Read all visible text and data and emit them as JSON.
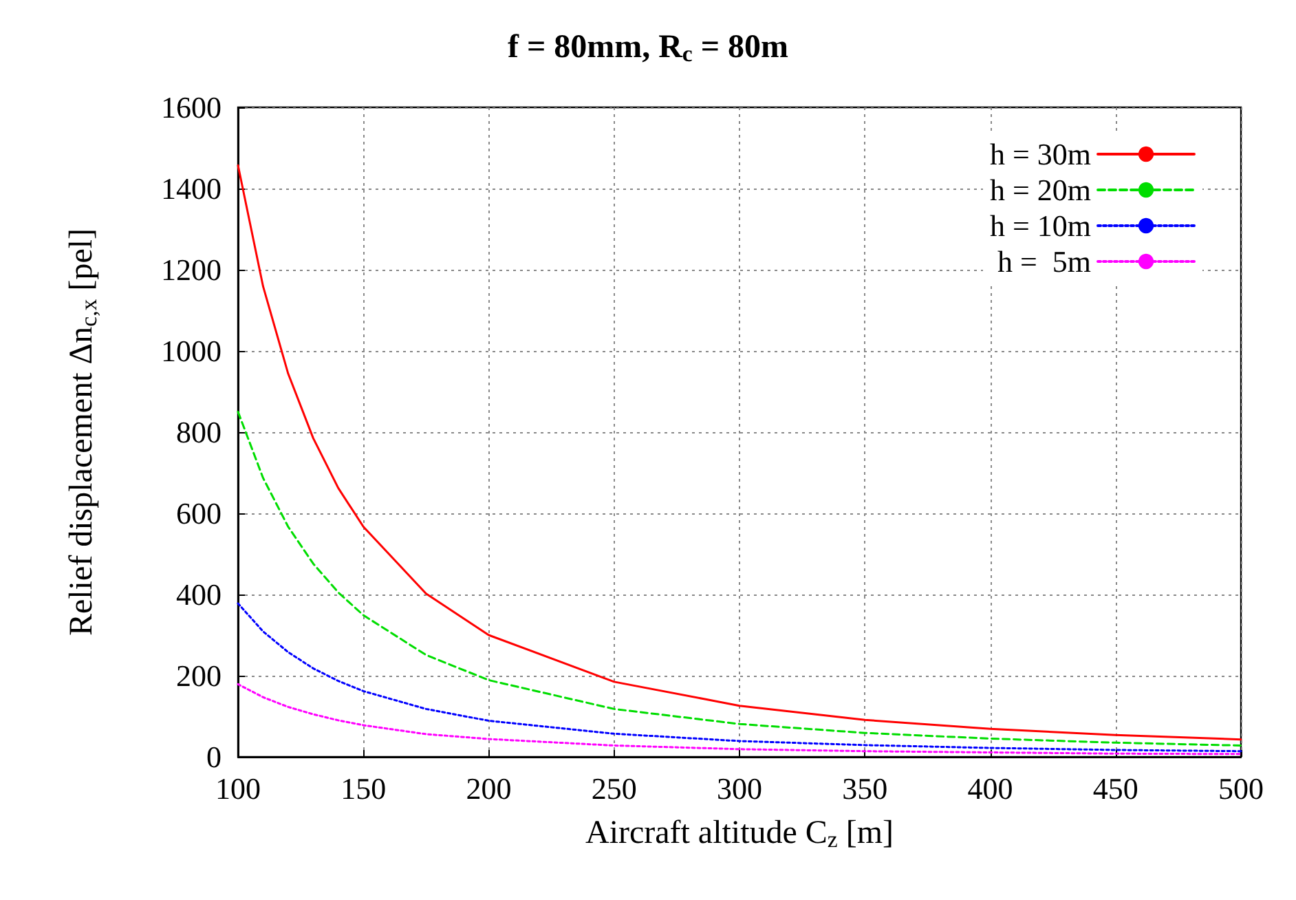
{
  "chart_data": {
    "type": "line",
    "title": "f = 80mm, R$_{c}$ = 80m",
    "xlabel": "Aircraft altitude C$_{z}$ [m]",
    "ylabel": "Relief displacement Δn$_{c,x}$ [pel]",
    "x": [
      100,
      110,
      120,
      130,
      140,
      150,
      175,
      200,
      250,
      300,
      350,
      400,
      450,
      500
    ],
    "series": [
      {
        "name": "h = 30m",
        "color": "#ff0000",
        "line_style": "solid",
        "values": [
          1457,
          1159,
          944,
          785,
          662,
          567,
          402,
          300,
          185,
          126,
          91,
          69,
          54,
          43
        ]
      },
      {
        "name": "h = 20m",
        "color": "#00dd00",
        "line_style": "dashed",
        "values": [
          850,
          687,
          567,
          476,
          405,
          349,
          251,
          189,
          118,
          81,
          59,
          45,
          35,
          28
        ]
      },
      {
        "name": "h = 10m",
        "color": "#0000ff",
        "line_style": "dotted",
        "values": [
          378,
          309,
          258,
          218,
          187,
          162,
          118,
          89,
          57,
          39,
          29,
          22,
          17,
          14
        ]
      },
      {
        "name": "h =  5m",
        "color": "#ff00ff",
        "line_style": "dotted",
        "values": [
          179,
          147,
          123,
          105,
          90,
          78,
          56,
          44,
          28,
          19,
          14,
          11,
          8,
          7
        ]
      }
    ],
    "xlim": [
      100,
      500
    ],
    "xticks": [
      100,
      150,
      200,
      250,
      300,
      350,
      400,
      450,
      500
    ],
    "ylim": [
      0,
      1600
    ],
    "yticks": [
      0,
      200,
      400,
      600,
      800,
      1000,
      1200,
      1400,
      1600
    ],
    "grid": true,
    "legend": "top right",
    "marker": "none"
  }
}
